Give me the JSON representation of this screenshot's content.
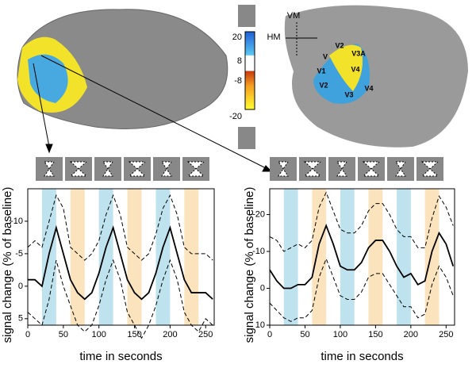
{
  "figure": {
    "colorbar_labels": [
      "20",
      "8",
      "-8",
      "-20"
    ],
    "map_labels": [
      "VM",
      "HM",
      "V2",
      "V3A",
      "V",
      "V1",
      "V4",
      "V2",
      "V3",
      "V4"
    ]
  },
  "chart_data": [
    {
      "type": "line",
      "x_label": "time in seconds",
      "y_label": "signal change (% of baseline)",
      "xlim": [
        0,
        262
      ],
      "xticks": [
        0,
        50,
        100,
        150,
        200,
        250
      ],
      "ylim": [
        -15,
        6
      ],
      "y_inverted": true,
      "yticks": [
        -10,
        -5,
        0,
        5
      ],
      "bands": [
        {
          "start": 20,
          "end": 40,
          "color": "#bfe3ee"
        },
        {
          "start": 60,
          "end": 80,
          "color": "#fae3bd"
        },
        {
          "start": 100,
          "end": 120,
          "color": "#bfe3ee"
        },
        {
          "start": 140,
          "end": 160,
          "color": "#fae3bd"
        },
        {
          "start": 180,
          "end": 200,
          "color": "#bfe3ee"
        },
        {
          "start": 220,
          "end": 240,
          "color": "#fae3bd"
        }
      ],
      "x": [
        0,
        10,
        20,
        30,
        40,
        50,
        60,
        70,
        80,
        90,
        100,
        110,
        120,
        130,
        140,
        150,
        160,
        170,
        180,
        190,
        200,
        210,
        220,
        230,
        240,
        250,
        260
      ],
      "series": [
        {
          "color": "#000",
          "dash": false,
          "values": [
            -1,
            -1,
            0,
            -5,
            -9,
            -5,
            -1,
            1,
            2,
            1,
            -2,
            -6,
            -9,
            -5,
            -1,
            1,
            2,
            1,
            -2,
            -6,
            -9,
            -5,
            -1,
            1,
            1,
            1,
            2
          ]
        },
        {
          "color": "#000",
          "dash": true,
          "values": [
            -6,
            -7,
            -6,
            -10,
            -14,
            -12,
            -6,
            -5,
            -4,
            -5,
            -7,
            -11,
            -14,
            -11,
            -6,
            -5,
            -4,
            -5,
            -8,
            -12,
            -14,
            -11,
            -6,
            -5,
            -5,
            -5,
            -4
          ]
        },
        {
          "color": "#000",
          "dash": true,
          "values": [
            4,
            5,
            6,
            2,
            -4,
            0,
            3,
            6,
            7,
            6,
            3,
            -1,
            -4,
            -1,
            4,
            6,
            8,
            6,
            3,
            -1,
            -4,
            -1,
            4,
            6,
            7,
            5,
            6
          ]
        }
      ]
    },
    {
      "type": "line",
      "x_label": "time in seconds",
      "y_label": "signal change (% of baseline)",
      "xlim": [
        0,
        262
      ],
      "xticks": [
        0,
        50,
        100,
        150,
        200,
        250
      ],
      "ylim": [
        -27,
        10
      ],
      "y_inverted": true,
      "yticks": [
        -20,
        -10,
        0,
        10
      ],
      "bands": [
        {
          "start": 20,
          "end": 40,
          "color": "#bfe3ee"
        },
        {
          "start": 60,
          "end": 80,
          "color": "#fae3bd"
        },
        {
          "start": 100,
          "end": 120,
          "color": "#bfe3ee"
        },
        {
          "start": 140,
          "end": 160,
          "color": "#fae3bd"
        },
        {
          "start": 180,
          "end": 200,
          "color": "#bfe3ee"
        },
        {
          "start": 220,
          "end": 240,
          "color": "#fae3bd"
        }
      ],
      "x": [
        0,
        10,
        20,
        30,
        40,
        50,
        60,
        70,
        80,
        90,
        100,
        110,
        120,
        130,
        140,
        150,
        160,
        170,
        180,
        190,
        200,
        210,
        220,
        230,
        240,
        250,
        260
      ],
      "series": [
        {
          "color": "#000",
          "dash": false,
          "values": [
            -5,
            -2,
            0,
            0,
            -1,
            -1,
            -3,
            -12,
            -17,
            -12,
            -6,
            -5,
            -5,
            -7,
            -11,
            -13,
            -13,
            -10,
            -6,
            -3,
            -4,
            -1,
            -2,
            -10,
            -15,
            -12,
            -6
          ]
        },
        {
          "color": "#000",
          "dash": true,
          "values": [
            -14,
            -13,
            -10,
            -11,
            -12,
            -11,
            -13,
            -22,
            -26,
            -21,
            -16,
            -15,
            -15,
            -17,
            -21,
            -23,
            -23,
            -20,
            -16,
            -14,
            -14,
            -11,
            -11,
            -19,
            -25,
            -22,
            -17
          ]
        },
        {
          "color": "#000",
          "dash": true,
          "values": [
            4,
            6,
            8,
            9,
            8,
            8,
            6,
            -3,
            -8,
            -3,
            2,
            3,
            3,
            1,
            -3,
            -4,
            -4,
            -1,
            2,
            5,
            5,
            8,
            7,
            -1,
            -6,
            -3,
            2
          ]
        }
      ]
    }
  ]
}
